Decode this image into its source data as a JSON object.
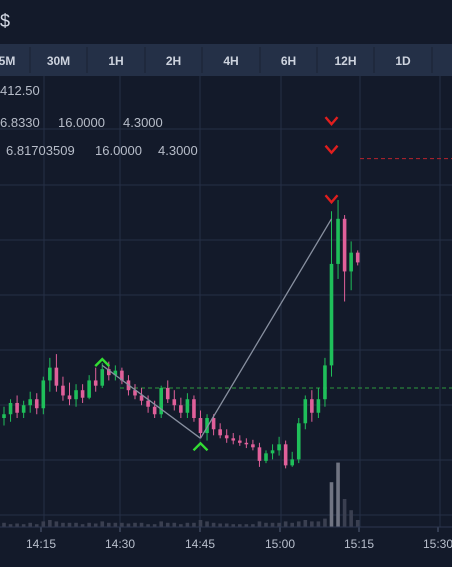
{
  "header": {
    "currency_symbol": "$"
  },
  "timeframes": [
    {
      "label": "5M",
      "active": false
    },
    {
      "label": "30M",
      "active": false
    },
    {
      "label": "1H",
      "active": false
    },
    {
      "label": "2H",
      "active": false
    },
    {
      "label": "4H",
      "active": false
    },
    {
      "label": "6H",
      "active": false
    },
    {
      "label": "12H",
      "active": false
    },
    {
      "label": "1D",
      "active": false
    }
  ],
  "info_lines": [
    [
      "412.50"
    ],
    [
      "6.8330",
      "16.0000",
      "4.3000"
    ],
    [
      "6.81703509",
      "16.0000",
      "4.3000"
    ]
  ],
  "colors": {
    "background": "#131a2a",
    "grid": "#263046",
    "up": "#1fbf5a",
    "down": "#e0609a",
    "signal_buy": "#33dd33",
    "signal_sell": "#e01e1e",
    "trend_line": "#8890a0",
    "green_level": "#2e9a3e",
    "red_level": "#b8232c",
    "volume": "#3a3f50",
    "volume_high": "#707482",
    "axis_text": "#b8bfcc"
  },
  "chart_data": {
    "type": "candlestick",
    "x_ticks": [
      "14:15",
      "14:30",
      "14:45",
      "15:00",
      "15:15",
      "15:30"
    ],
    "candles": [
      {
        "o": 6.05,
        "h": 6.2,
        "l": 5.95,
        "c": 6.1
      },
      {
        "o": 6.1,
        "h": 6.3,
        "l": 6.0,
        "c": 6.25
      },
      {
        "o": 6.25,
        "h": 6.35,
        "l": 6.05,
        "c": 6.12
      },
      {
        "o": 6.12,
        "h": 6.28,
        "l": 6.05,
        "c": 6.22
      },
      {
        "o": 6.22,
        "h": 6.4,
        "l": 6.12,
        "c": 6.3
      },
      {
        "o": 6.3,
        "h": 6.38,
        "l": 6.1,
        "c": 6.18
      },
      {
        "o": 6.18,
        "h": 6.6,
        "l": 6.1,
        "c": 6.55
      },
      {
        "o": 6.55,
        "h": 6.85,
        "l": 6.4,
        "c": 6.72
      },
      {
        "o": 6.72,
        "h": 6.9,
        "l": 6.4,
        "c": 6.48
      },
      {
        "o": 6.48,
        "h": 6.6,
        "l": 6.28,
        "c": 6.35
      },
      {
        "o": 6.35,
        "h": 6.52,
        "l": 6.22,
        "c": 6.3
      },
      {
        "o": 6.3,
        "h": 6.5,
        "l": 6.2,
        "c": 6.42
      },
      {
        "o": 6.42,
        "h": 6.5,
        "l": 6.25,
        "c": 6.32
      },
      {
        "o": 6.32,
        "h": 6.62,
        "l": 6.3,
        "c": 6.55
      },
      {
        "o": 6.55,
        "h": 6.72,
        "l": 6.4,
        "c": 6.48
      },
      {
        "o": 6.48,
        "h": 6.78,
        "l": 6.45,
        "c": 6.7
      },
      {
        "o": 6.7,
        "h": 6.8,
        "l": 6.55,
        "c": 6.62
      },
      {
        "o": 6.62,
        "h": 6.75,
        "l": 6.55,
        "c": 6.68
      },
      {
        "o": 6.68,
        "h": 6.72,
        "l": 6.5,
        "c": 6.55
      },
      {
        "o": 6.55,
        "h": 6.62,
        "l": 6.35,
        "c": 6.42
      },
      {
        "o": 6.42,
        "h": 6.5,
        "l": 6.3,
        "c": 6.35
      },
      {
        "o": 6.35,
        "h": 6.45,
        "l": 6.22,
        "c": 6.28
      },
      {
        "o": 6.28,
        "h": 6.35,
        "l": 6.12,
        "c": 6.2
      },
      {
        "o": 6.2,
        "h": 6.28,
        "l": 6.05,
        "c": 6.1
      },
      {
        "o": 6.1,
        "h": 6.48,
        "l": 6.05,
        "c": 6.45
      },
      {
        "o": 6.45,
        "h": 6.55,
        "l": 6.25,
        "c": 6.3
      },
      {
        "o": 6.3,
        "h": 6.42,
        "l": 6.15,
        "c": 6.22
      },
      {
        "o": 6.22,
        "h": 6.32,
        "l": 6.05,
        "c": 6.12
      },
      {
        "o": 6.12,
        "h": 6.38,
        "l": 6.05,
        "c": 6.3
      },
      {
        "o": 6.3,
        "h": 6.35,
        "l": 6.0,
        "c": 6.05
      },
      {
        "o": 6.05,
        "h": 6.15,
        "l": 5.78,
        "c": 5.85
      },
      {
        "o": 5.85,
        "h": 6.1,
        "l": 5.75,
        "c": 6.05
      },
      {
        "o": 6.05,
        "h": 6.1,
        "l": 5.82,
        "c": 5.9
      },
      {
        "o": 5.9,
        "h": 5.98,
        "l": 5.78,
        "c": 5.82
      },
      {
        "o": 5.82,
        "h": 5.9,
        "l": 5.72,
        "c": 5.78
      },
      {
        "o": 5.78,
        "h": 5.85,
        "l": 5.7,
        "c": 5.75
      },
      {
        "o": 5.75,
        "h": 5.82,
        "l": 5.68,
        "c": 5.72
      },
      {
        "o": 5.72,
        "h": 5.78,
        "l": 5.65,
        "c": 5.7
      },
      {
        "o": 5.7,
        "h": 5.76,
        "l": 5.62,
        "c": 5.66
      },
      {
        "o": 5.66,
        "h": 5.72,
        "l": 5.4,
        "c": 5.48
      },
      {
        "o": 5.48,
        "h": 5.62,
        "l": 5.45,
        "c": 5.58
      },
      {
        "o": 5.58,
        "h": 5.7,
        "l": 5.5,
        "c": 5.62
      },
      {
        "o": 5.62,
        "h": 5.8,
        "l": 5.55,
        "c": 5.7
      },
      {
        "o": 5.7,
        "h": 5.75,
        "l": 5.38,
        "c": 5.42
      },
      {
        "o": 5.42,
        "h": 5.6,
        "l": 5.4,
        "c": 5.5
      },
      {
        "o": 5.5,
        "h": 6.05,
        "l": 5.45,
        "c": 5.98
      },
      {
        "o": 5.98,
        "h": 6.35,
        "l": 5.9,
        "c": 6.3
      },
      {
        "o": 6.3,
        "h": 6.42,
        "l": 6.0,
        "c": 6.12
      },
      {
        "o": 6.12,
        "h": 6.45,
        "l": 6.05,
        "c": 6.3
      },
      {
        "o": 6.3,
        "h": 6.85,
        "l": 6.2,
        "c": 6.75
      },
      {
        "o": 6.75,
        "h": 8.8,
        "l": 6.6,
        "c": 8.1
      },
      {
        "o": 8.1,
        "h": 8.95,
        "l": 7.9,
        "c": 8.7
      },
      {
        "o": 8.7,
        "h": 8.75,
        "l": 7.6,
        "c": 8.0
      },
      {
        "o": 8.0,
        "h": 8.4,
        "l": 7.75,
        "c": 8.25
      },
      {
        "o": 8.25,
        "h": 8.28,
        "l": 8.08,
        "c": 8.12
      }
    ],
    "volumes": [
      0.3,
      0.2,
      0.25,
      0.2,
      0.3,
      0.2,
      0.4,
      0.5,
      0.4,
      0.3,
      0.3,
      0.3,
      0.2,
      0.3,
      0.25,
      0.4,
      0.3,
      0.3,
      0.3,
      0.25,
      0.3,
      0.3,
      0.2,
      0.2,
      0.4,
      0.3,
      0.3,
      0.2,
      0.3,
      0.3,
      0.5,
      0.4,
      0.3,
      0.25,
      0.25,
      0.2,
      0.2,
      0.2,
      0.2,
      0.4,
      0.3,
      0.3,
      0.3,
      0.4,
      0.3,
      0.4,
      0.5,
      0.4,
      0.4,
      0.6,
      3.2,
      4.6,
      2.0,
      1.2,
      0.5
    ],
    "y_range": [
      4.6,
      10.6
    ],
    "green_level": 6.45,
    "red_level": 9.5,
    "buy_signals": [
      {
        "i": 15,
        "price": 6.82
      },
      {
        "i": 30,
        "price": 5.7
      }
    ],
    "sell_signals": [
      {
        "i": 50,
        "price": 10.0
      },
      {
        "i": 50,
        "price": 9.62
      },
      {
        "i": 50,
        "price": 8.96
      }
    ],
    "trend_segments": [
      [
        {
          "i": 15,
          "price": 6.75
        },
        {
          "i": 30,
          "price": 5.78
        }
      ],
      [
        {
          "i": 30,
          "price": 5.78
        },
        {
          "i": 50,
          "price": 8.7
        }
      ]
    ]
  }
}
